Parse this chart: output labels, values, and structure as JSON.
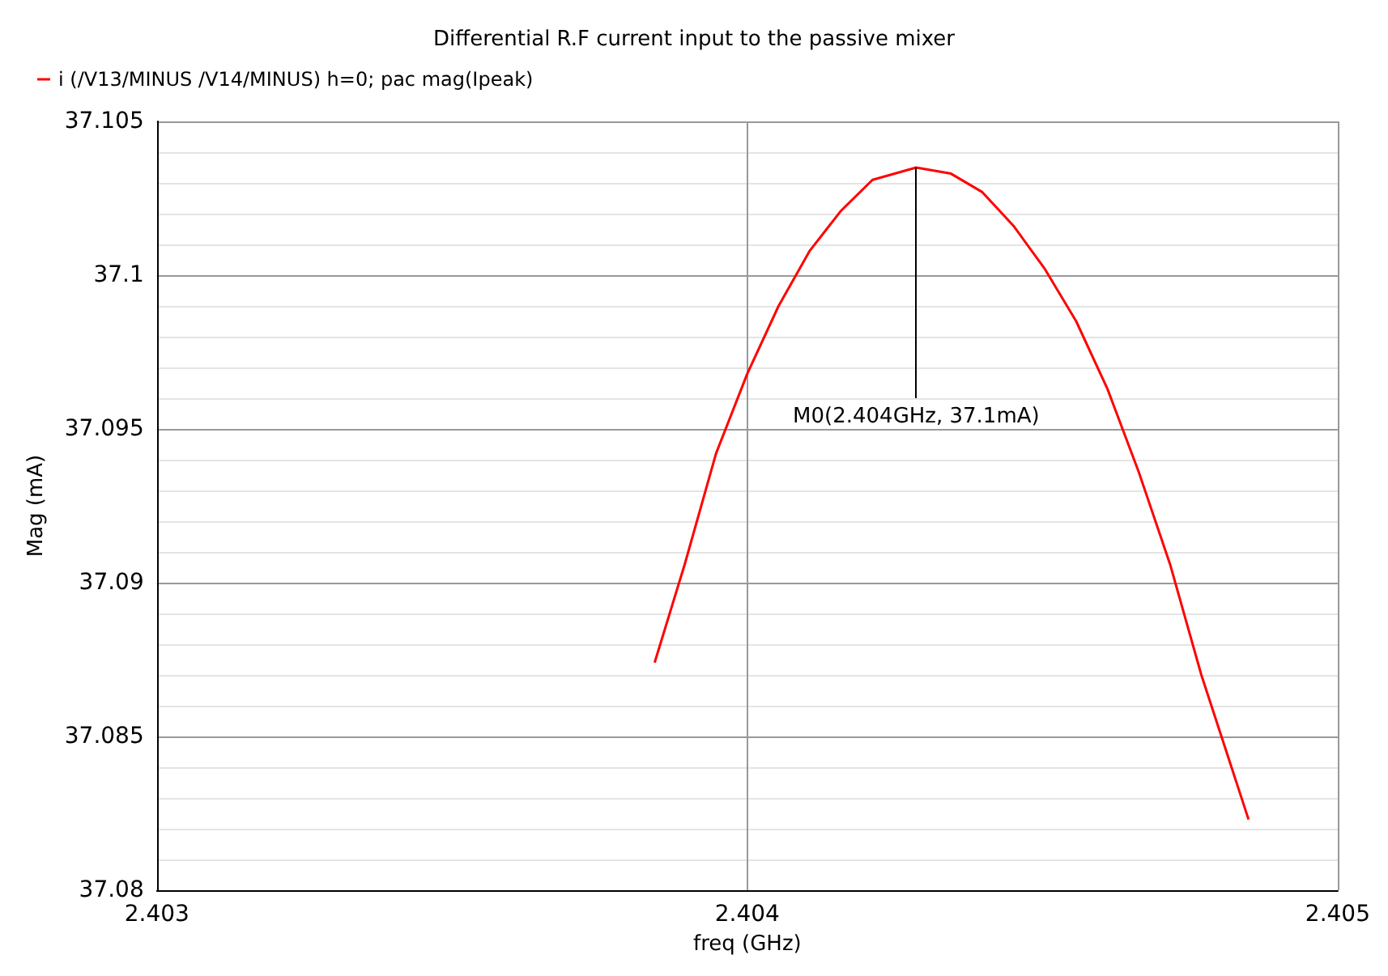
{
  "chart_data": {
    "type": "line",
    "title": "Differential R.F current input to the passive mixer",
    "xlabel": "freq (GHz)",
    "ylabel": "Mag (mA)",
    "series": [
      {
        "name": "i (/V13/MINUS /V14/MINUS) h=0; pac mag(Ipeak)",
        "color": "#ff0000",
        "x": [
          2.403843,
          2.403894,
          2.403947,
          2.404,
          2.404053,
          2.404106,
          2.404159,
          2.404212,
          2.404286,
          2.404345,
          2.404398,
          2.404451,
          2.404504,
          2.404557,
          2.40461,
          2.404663,
          2.404716,
          2.404769,
          2.404849
        ],
        "values": [
          37.0874,
          37.0906,
          37.0942,
          37.0968,
          37.099,
          37.1008,
          37.1021,
          37.1031,
          37.1035,
          37.1033,
          37.1027,
          37.1016,
          37.1002,
          37.0985,
          37.0963,
          37.0936,
          37.0906,
          37.087,
          37.0823
        ]
      }
    ],
    "xlim": [
      2.403,
      2.405
    ],
    "xticks": [
      2.403,
      2.404,
      2.405
    ],
    "ylim": [
      37.08,
      37.105
    ],
    "yticks": [
      37.08,
      37.085,
      37.09,
      37.095,
      37.1,
      37.105
    ],
    "annotations": [
      {
        "text": "M0(2.404GHz, 37.1mA)",
        "x": 2.404286,
        "y": 37.1035
      }
    ],
    "grid": true,
    "legend": "top left",
    "marker": "none",
    "line_style": "solid"
  }
}
